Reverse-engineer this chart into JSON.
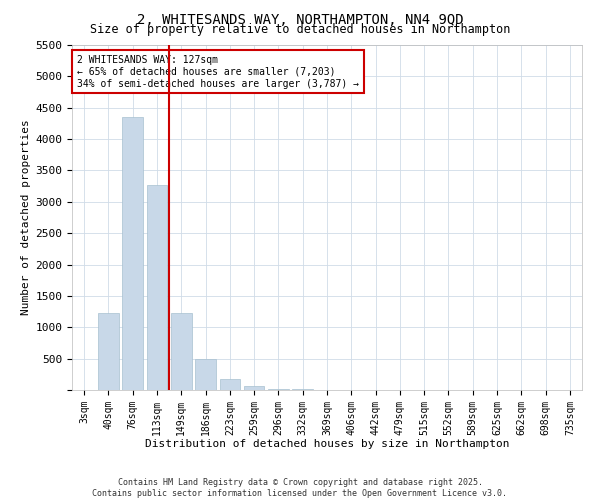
{
  "title": "2, WHITESANDS WAY, NORTHAMPTON, NN4 9QD",
  "subtitle": "Size of property relative to detached houses in Northampton",
  "xlabel": "Distribution of detached houses by size in Northampton",
  "ylabel": "Number of detached properties",
  "categories": [
    "3sqm",
    "40sqm",
    "76sqm",
    "113sqm",
    "149sqm",
    "186sqm",
    "223sqm",
    "259sqm",
    "296sqm",
    "332sqm",
    "369sqm",
    "406sqm",
    "442sqm",
    "479sqm",
    "515sqm",
    "552sqm",
    "589sqm",
    "625sqm",
    "662sqm",
    "698sqm",
    "735sqm"
  ],
  "values": [
    0,
    1220,
    4350,
    3270,
    1230,
    500,
    170,
    60,
    20,
    10,
    5,
    3,
    2,
    1,
    1,
    0,
    0,
    0,
    0,
    0,
    0
  ],
  "bar_color": "#c8d8e8",
  "bar_edgecolor": "#a8c0d0",
  "vline_x": 3.5,
  "vline_color": "#cc0000",
  "annotation_text": "2 WHITESANDS WAY: 127sqm\n← 65% of detached houses are smaller (7,203)\n34% of semi-detached houses are larger (3,787) →",
  "annotation_box_color": "#ffffff",
  "annotation_box_edgecolor": "#cc0000",
  "ylim": [
    0,
    5500
  ],
  "yticks": [
    0,
    500,
    1000,
    1500,
    2000,
    2500,
    3000,
    3500,
    4000,
    4500,
    5000,
    5500
  ],
  "footer1": "Contains HM Land Registry data © Crown copyright and database right 2025.",
  "footer2": "Contains public sector information licensed under the Open Government Licence v3.0.",
  "background_color": "#ffffff",
  "grid_color": "#d0dce8",
  "title_fontsize": 10,
  "subtitle_fontsize": 8.5,
  "xlabel_fontsize": 8,
  "ylabel_fontsize": 8,
  "tick_fontsize": 7,
  "annotation_fontsize": 7,
  "footer_fontsize": 6
}
